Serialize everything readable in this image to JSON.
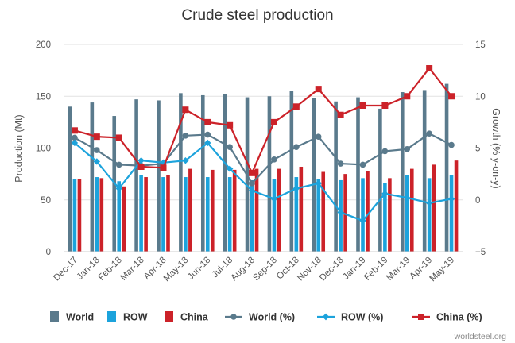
{
  "chart_data": {
    "type": "bar",
    "title": "Crude steel production",
    "categories": [
      "Dec-17",
      "Jan-18",
      "Feb-18",
      "Mar-18",
      "Apr-18",
      "May-18",
      "Jun-18",
      "Jul-18",
      "Aug-18",
      "Sep-18",
      "Oct-18",
      "Nov-18",
      "Dec-18",
      "Jan-19",
      "Feb-19",
      "Mar-19",
      "Apr-19",
      "May-19"
    ],
    "ylabel": "Production (Mt)",
    "ylim": [
      0,
      200
    ],
    "yticks": [
      "0",
      "50",
      "100",
      "150",
      "200"
    ],
    "y2label": "Growth (% y-on-y)",
    "y2lim": [
      -5,
      15
    ],
    "y2ticks": [
      "−5",
      "0",
      "5",
      "10",
      "15"
    ],
    "grid": true,
    "legend_position": "bottom",
    "bar_series": [
      {
        "name": "World",
        "color": "#5a7a8c",
        "values": [
          140,
          144,
          131,
          147,
          146,
          153,
          151,
          152,
          149,
          150,
          155,
          148,
          145,
          149,
          138,
          154,
          156,
          162
        ]
      },
      {
        "name": "ROW",
        "color": "#1ca3dc",
        "values": [
          70,
          72,
          68,
          74,
          72,
          72,
          72,
          72,
          69,
          70,
          72,
          70,
          69,
          71,
          66,
          74,
          71,
          74
        ]
      },
      {
        "name": "China",
        "color": "#cc2229",
        "values": [
          70,
          71,
          63,
          72,
          74,
          80,
          79,
          79,
          80,
          80,
          82,
          77,
          75,
          78,
          71,
          80,
          84,
          88
        ]
      }
    ],
    "line_series": [
      {
        "name": "World (%)",
        "color": "#5a7a8c",
        "marker": "circle",
        "values": [
          6.0,
          4.8,
          3.4,
          3.3,
          3.5,
          6.2,
          6.3,
          5.1,
          1.6,
          3.9,
          5.1,
          6.1,
          3.5,
          3.4,
          4.7,
          4.9,
          6.4,
          5.3
        ]
      },
      {
        "name": "ROW (%)",
        "color": "#1ca3dc",
        "marker": "diamond",
        "values": [
          5.5,
          3.7,
          1.1,
          3.8,
          3.6,
          3.8,
          5.5,
          3.0,
          0.9,
          0.1,
          1.1,
          1.6,
          -1.2,
          -2.0,
          0.6,
          0.2,
          -0.3,
          0.1
        ]
      },
      {
        "name": "China (%)",
        "color": "#cc2229",
        "marker": "square",
        "values": [
          6.7,
          6.1,
          6.0,
          3.2,
          3.1,
          8.7,
          7.5,
          7.2,
          2.6,
          7.5,
          9.0,
          10.7,
          8.2,
          9.1,
          9.1,
          10.0,
          12.7,
          10.0
        ]
      }
    ],
    "credit": "worldsteel.org"
  }
}
